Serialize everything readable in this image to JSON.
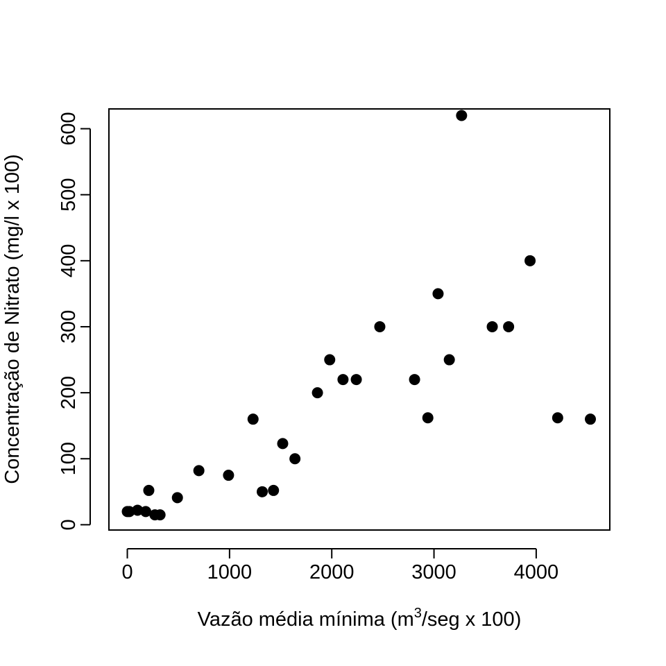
{
  "chart_data": {
    "type": "scatter",
    "title": "",
    "xlabel": {
      "prefix": "Vazão média mínima (m",
      "superscript": "3",
      "suffix": "/seg x 100)"
    },
    "ylabel": "Concentração de Nitrato (mg/l x 100)",
    "xlim": [
      -180,
      4720
    ],
    "ylim": [
      -8,
      630
    ],
    "x_ticks": [
      0,
      1000,
      2000,
      3000,
      4000
    ],
    "y_ticks": [
      0,
      100,
      200,
      300,
      400,
      500,
      600
    ],
    "grid": false,
    "legend": "none",
    "marker_color": "#000000",
    "points": [
      {
        "x": 0,
        "y": 20
      },
      {
        "x": 20,
        "y": 20
      },
      {
        "x": 100,
        "y": 22
      },
      {
        "x": 180,
        "y": 20
      },
      {
        "x": 210,
        "y": 52
      },
      {
        "x": 270,
        "y": 15
      },
      {
        "x": 320,
        "y": 15
      },
      {
        "x": 490,
        "y": 41
      },
      {
        "x": 700,
        "y": 82
      },
      {
        "x": 990,
        "y": 75
      },
      {
        "x": 1230,
        "y": 160
      },
      {
        "x": 1320,
        "y": 50
      },
      {
        "x": 1430,
        "y": 52
      },
      {
        "x": 1520,
        "y": 123
      },
      {
        "x": 1640,
        "y": 100
      },
      {
        "x": 1860,
        "y": 200
      },
      {
        "x": 1980,
        "y": 250
      },
      {
        "x": 2110,
        "y": 220
      },
      {
        "x": 2240,
        "y": 220
      },
      {
        "x": 2470,
        "y": 300
      },
      {
        "x": 2810,
        "y": 220
      },
      {
        "x": 2940,
        "y": 162
      },
      {
        "x": 3040,
        "y": 350
      },
      {
        "x": 3150,
        "y": 250
      },
      {
        "x": 3270,
        "y": 620
      },
      {
        "x": 3570,
        "y": 300
      },
      {
        "x": 3730,
        "y": 300
      },
      {
        "x": 3940,
        "y": 400
      },
      {
        "x": 4210,
        "y": 162
      },
      {
        "x": 4530,
        "y": 160
      }
    ]
  }
}
